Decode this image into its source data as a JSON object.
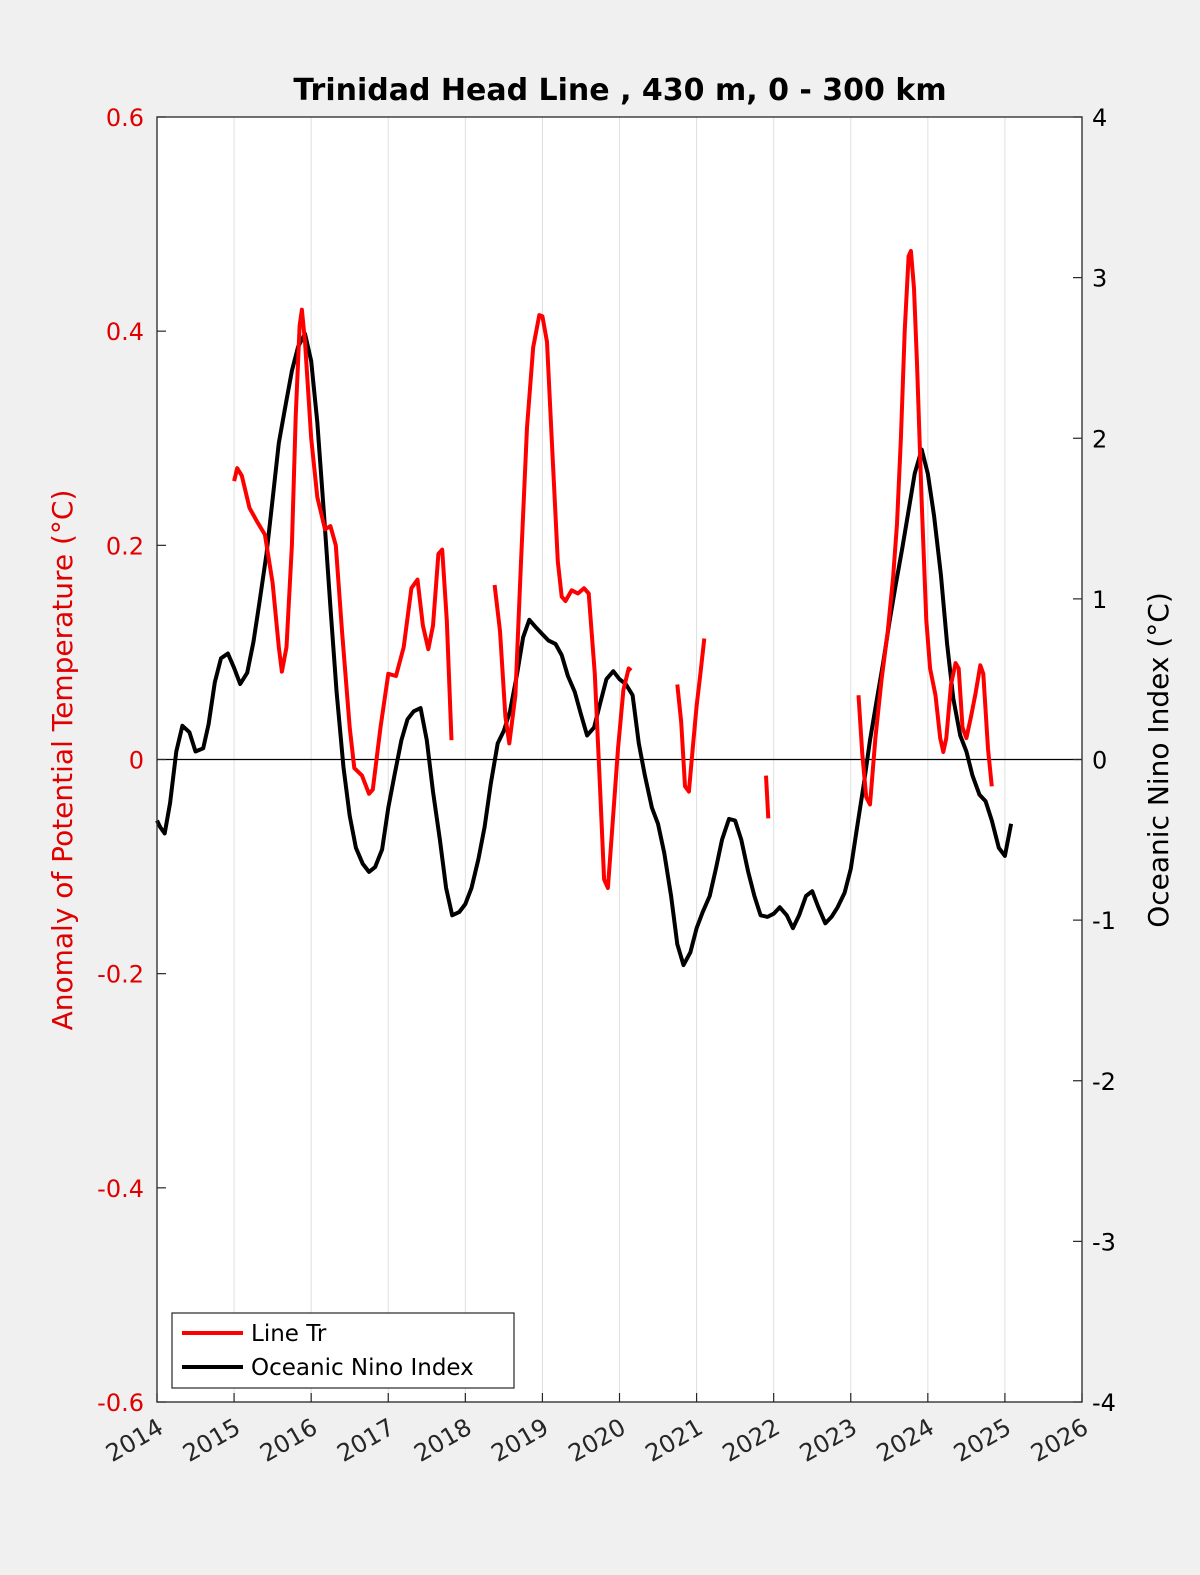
{
  "chart_data": {
    "type": "line",
    "title": "Trinidad Head Line , 430 m, 0 - 300 km",
    "xlabel": "",
    "ylabel_left": "Anomaly of Potential Temperature (°C)",
    "ylabel_right": "Oceanic Nino Index (°C)",
    "xlim": [
      2014,
      2026
    ],
    "ylim_left": [
      -0.6,
      0.6
    ],
    "ylim_right": [
      -4,
      4
    ],
    "x_ticks": [
      2014,
      2015,
      2016,
      2017,
      2018,
      2019,
      2020,
      2021,
      2022,
      2023,
      2024,
      2025,
      2026
    ],
    "x_tick_labels": [
      "2014",
      "2015",
      "2016",
      "2017",
      "2018",
      "2019",
      "2020",
      "2021",
      "2022",
      "2023",
      "2024",
      "2025",
      "2026"
    ],
    "y_left_ticks": [
      -0.6,
      -0.4,
      -0.2,
      0,
      0.2,
      0.4,
      0.6
    ],
    "y_left_tick_labels": [
      "-0.6",
      "-0.4",
      "-0.2",
      "0",
      "0.2",
      "0.4",
      "0.6"
    ],
    "y_right_ticks": [
      -4,
      -3,
      -2,
      -1,
      0,
      1,
      2,
      3,
      4
    ],
    "y_right_tick_labels": [
      "-4",
      "-3",
      "-2",
      "-1",
      "0",
      "1",
      "2",
      "3",
      "4"
    ],
    "grid": "vertical",
    "legend_position": "bottom-left",
    "colors": {
      "line_tr": "#ff0000",
      "oni": "#000000",
      "left_axis": "#e00000",
      "right_axis": "#000000"
    },
    "series": [
      {
        "name": "Line Tr",
        "axis": "left",
        "segments": [
          [
            [
              2015.0,
              0.26
            ],
            [
              2015.04,
              0.272
            ],
            [
              2015.1,
              0.265
            ],
            [
              2015.2,
              0.235
            ],
            [
              2015.3,
              0.222
            ],
            [
              2015.4,
              0.21
            ],
            [
              2015.5,
              0.165
            ],
            [
              2015.58,
              0.105
            ],
            [
              2015.62,
              0.082
            ],
            [
              2015.68,
              0.105
            ],
            [
              2015.75,
              0.2
            ],
            [
              2015.8,
              0.32
            ],
            [
              2015.85,
              0.405
            ],
            [
              2015.88,
              0.42
            ],
            [
              2015.92,
              0.39
            ],
            [
              2016.0,
              0.3
            ],
            [
              2016.08,
              0.245
            ],
            [
              2016.18,
              0.215
            ],
            [
              2016.25,
              0.218
            ],
            [
              2016.32,
              0.2
            ],
            [
              2016.4,
              0.12
            ],
            [
              2016.5,
              0.03
            ],
            [
              2016.56,
              -0.008
            ],
            [
              2016.66,
              -0.015
            ],
            [
              2016.75,
              -0.032
            ],
            [
              2016.8,
              -0.028
            ],
            [
              2016.9,
              0.03
            ],
            [
              2017.0,
              0.08
            ],
            [
              2017.1,
              0.078
            ],
            [
              2017.2,
              0.105
            ],
            [
              2017.3,
              0.16
            ],
            [
              2017.38,
              0.168
            ],
            [
              2017.45,
              0.125
            ],
            [
              2017.52,
              0.103
            ],
            [
              2017.58,
              0.125
            ],
            [
              2017.65,
              0.192
            ],
            [
              2017.7,
              0.196
            ],
            [
              2017.76,
              0.13
            ],
            [
              2017.82,
              0.018
            ]
          ],
          [
            [
              2018.38,
              0.163
            ],
            [
              2018.45,
              0.12
            ],
            [
              2018.52,
              0.04
            ],
            [
              2018.57,
              0.015
            ],
            [
              2018.65,
              0.06
            ],
            [
              2018.72,
              0.18
            ],
            [
              2018.8,
              0.31
            ],
            [
              2018.88,
              0.385
            ],
            [
              2018.96,
              0.415
            ],
            [
              2019.0,
              0.414
            ],
            [
              2019.06,
              0.39
            ],
            [
              2019.12,
              0.3
            ],
            [
              2019.2,
              0.185
            ],
            [
              2019.25,
              0.152
            ],
            [
              2019.3,
              0.148
            ],
            [
              2019.38,
              0.158
            ],
            [
              2019.46,
              0.155
            ],
            [
              2019.54,
              0.16
            ],
            [
              2019.6,
              0.155
            ],
            [
              2019.68,
              0.08
            ],
            [
              2019.75,
              -0.03
            ],
            [
              2019.8,
              -0.112
            ],
            [
              2019.85,
              -0.12
            ],
            [
              2019.9,
              -0.07
            ],
            [
              2019.98,
              0.01
            ],
            [
              2020.05,
              0.065
            ],
            [
              2020.12,
              0.085
            ],
            [
              2020.15,
              0.083
            ]
          ],
          [
            [
              2020.75,
              0.07
            ],
            [
              2020.8,
              0.035
            ],
            [
              2020.85,
              -0.025
            ],
            [
              2020.9,
              -0.03
            ],
            [
              2020.95,
              0.01
            ],
            [
              2021.0,
              0.05
            ],
            [
              2021.05,
              0.08
            ],
            [
              2021.1,
              0.113
            ]
          ],
          [
            [
              2021.9,
              -0.015
            ],
            [
              2021.93,
              -0.055
            ]
          ],
          [
            [
              2023.1,
              0.06
            ],
            [
              2023.15,
              0.005
            ],
            [
              2023.2,
              -0.035
            ],
            [
              2023.25,
              -0.042
            ],
            [
              2023.32,
              0.02
            ],
            [
              2023.4,
              0.075
            ],
            [
              2023.48,
              0.12
            ],
            [
              2023.55,
              0.17
            ],
            [
              2023.6,
              0.22
            ],
            [
              2023.65,
              0.3
            ],
            [
              2023.7,
              0.4
            ],
            [
              2023.75,
              0.47
            ],
            [
              2023.78,
              0.475
            ],
            [
              2023.82,
              0.44
            ],
            [
              2023.86,
              0.37
            ],
            [
              2023.92,
              0.24
            ],
            [
              2023.98,
              0.13
            ],
            [
              2024.03,
              0.085
            ],
            [
              2024.1,
              0.06
            ],
            [
              2024.16,
              0.02
            ],
            [
              2024.2,
              0.007
            ],
            [
              2024.24,
              0.02
            ],
            [
              2024.3,
              0.07
            ],
            [
              2024.36,
              0.09
            ],
            [
              2024.4,
              0.085
            ],
            [
              2024.45,
              0.03
            ],
            [
              2024.5,
              0.02
            ],
            [
              2024.56,
              0.04
            ],
            [
              2024.62,
              0.062
            ],
            [
              2024.68,
              0.088
            ],
            [
              2024.72,
              0.08
            ],
            [
              2024.78,
              0.01
            ],
            [
              2024.83,
              -0.025
            ]
          ]
        ]
      },
      {
        "name": "Oceanic Nino Index",
        "axis": "right",
        "segments": [
          [
            [
              2014.0,
              -0.38
            ],
            [
              2014.04,
              -0.42
            ],
            [
              2014.1,
              -0.46
            ],
            [
              2014.17,
              -0.27
            ],
            [
              2014.25,
              0.05
            ],
            [
              2014.33,
              0.21
            ],
            [
              2014.42,
              0.17
            ],
            [
              2014.5,
              0.05
            ],
            [
              2014.6,
              0.07
            ],
            [
              2014.67,
              0.22
            ],
            [
              2014.75,
              0.48
            ],
            [
              2014.83,
              0.63
            ],
            [
              2014.92,
              0.66
            ],
            [
              2015.0,
              0.57
            ],
            [
              2015.08,
              0.47
            ],
            [
              2015.17,
              0.54
            ],
            [
              2015.25,
              0.73
            ],
            [
              2015.33,
              0.98
            ],
            [
              2015.42,
              1.28
            ],
            [
              2015.5,
              1.62
            ],
            [
              2015.58,
              1.97
            ],
            [
              2015.67,
              2.21
            ],
            [
              2015.75,
              2.42
            ],
            [
              2015.83,
              2.57
            ],
            [
              2015.92,
              2.65
            ],
            [
              2016.0,
              2.48
            ],
            [
              2016.08,
              2.1
            ],
            [
              2016.17,
              1.5
            ],
            [
              2016.25,
              0.95
            ],
            [
              2016.33,
              0.42
            ],
            [
              2016.42,
              -0.05
            ],
            [
              2016.5,
              -0.35
            ],
            [
              2016.58,
              -0.55
            ],
            [
              2016.67,
              -0.65
            ],
            [
              2016.75,
              -0.7
            ],
            [
              2016.83,
              -0.67
            ],
            [
              2016.92,
              -0.56
            ],
            [
              2017.0,
              -0.3
            ],
            [
              2017.08,
              -0.1
            ],
            [
              2017.17,
              0.12
            ],
            [
              2017.25,
              0.25
            ],
            [
              2017.33,
              0.3
            ],
            [
              2017.42,
              0.32
            ],
            [
              2017.5,
              0.12
            ],
            [
              2017.58,
              -0.2
            ],
            [
              2017.67,
              -0.5
            ],
            [
              2017.75,
              -0.8
            ],
            [
              2017.83,
              -0.97
            ],
            [
              2017.92,
              -0.95
            ],
            [
              2018.0,
              -0.9
            ],
            [
              2018.08,
              -0.8
            ],
            [
              2018.17,
              -0.62
            ],
            [
              2018.25,
              -0.42
            ],
            [
              2018.33,
              -0.15
            ],
            [
              2018.42,
              0.1
            ],
            [
              2018.5,
              0.18
            ],
            [
              2018.58,
              0.3
            ],
            [
              2018.67,
              0.53
            ],
            [
              2018.75,
              0.76
            ],
            [
              2018.83,
              0.87
            ],
            [
              2018.92,
              0.82
            ],
            [
              2019.0,
              0.78
            ],
            [
              2019.08,
              0.74
            ],
            [
              2019.17,
              0.72
            ],
            [
              2019.25,
              0.65
            ],
            [
              2019.33,
              0.52
            ],
            [
              2019.42,
              0.42
            ],
            [
              2019.5,
              0.28
            ],
            [
              2019.58,
              0.15
            ],
            [
              2019.67,
              0.2
            ],
            [
              2019.75,
              0.35
            ],
            [
              2019.83,
              0.5
            ],
            [
              2019.92,
              0.55
            ],
            [
              2020.0,
              0.5
            ],
            [
              2020.08,
              0.47
            ],
            [
              2020.17,
              0.4
            ],
            [
              2020.25,
              0.1
            ],
            [
              2020.33,
              -0.1
            ],
            [
              2020.42,
              -0.3
            ],
            [
              2020.5,
              -0.4
            ],
            [
              2020.58,
              -0.58
            ],
            [
              2020.67,
              -0.85
            ],
            [
              2020.75,
              -1.15
            ],
            [
              2020.83,
              -1.28
            ],
            [
              2020.92,
              -1.2
            ],
            [
              2021.0,
              -1.05
            ],
            [
              2021.08,
              -0.95
            ],
            [
              2021.17,
              -0.85
            ],
            [
              2021.25,
              -0.68
            ],
            [
              2021.33,
              -0.5
            ],
            [
              2021.42,
              -0.37
            ],
            [
              2021.5,
              -0.38
            ],
            [
              2021.58,
              -0.5
            ],
            [
              2021.67,
              -0.7
            ],
            [
              2021.75,
              -0.85
            ],
            [
              2021.83,
              -0.97
            ],
            [
              2021.92,
              -0.98
            ],
            [
              2022.0,
              -0.96
            ],
            [
              2022.08,
              -0.92
            ],
            [
              2022.17,
              -0.97
            ],
            [
              2022.25,
              -1.05
            ],
            [
              2022.33,
              -0.97
            ],
            [
              2022.42,
              -0.85
            ],
            [
              2022.5,
              -0.82
            ],
            [
              2022.58,
              -0.92
            ],
            [
              2022.67,
              -1.02
            ],
            [
              2022.75,
              -0.98
            ],
            [
              2022.83,
              -0.92
            ],
            [
              2022.92,
              -0.83
            ],
            [
              2023.0,
              -0.68
            ],
            [
              2023.08,
              -0.43
            ],
            [
              2023.17,
              -0.15
            ],
            [
              2023.25,
              0.12
            ],
            [
              2023.33,
              0.35
            ],
            [
              2023.42,
              0.6
            ],
            [
              2023.5,
              0.85
            ],
            [
              2023.58,
              1.08
            ],
            [
              2023.67,
              1.32
            ],
            [
              2023.75,
              1.55
            ],
            [
              2023.83,
              1.78
            ],
            [
              2023.92,
              1.93
            ],
            [
              2024.0,
              1.78
            ],
            [
              2024.08,
              1.52
            ],
            [
              2024.17,
              1.15
            ],
            [
              2024.25,
              0.72
            ],
            [
              2024.33,
              0.38
            ],
            [
              2024.42,
              0.15
            ],
            [
              2024.5,
              0.05
            ],
            [
              2024.58,
              -0.1
            ],
            [
              2024.67,
              -0.22
            ],
            [
              2024.75,
              -0.26
            ],
            [
              2024.83,
              -0.38
            ],
            [
              2024.92,
              -0.55
            ],
            [
              2025.0,
              -0.6
            ],
            [
              2025.08,
              -0.4
            ]
          ]
        ]
      }
    ],
    "legend": [
      "Line Tr",
      "Oceanic Nino Index"
    ]
  }
}
